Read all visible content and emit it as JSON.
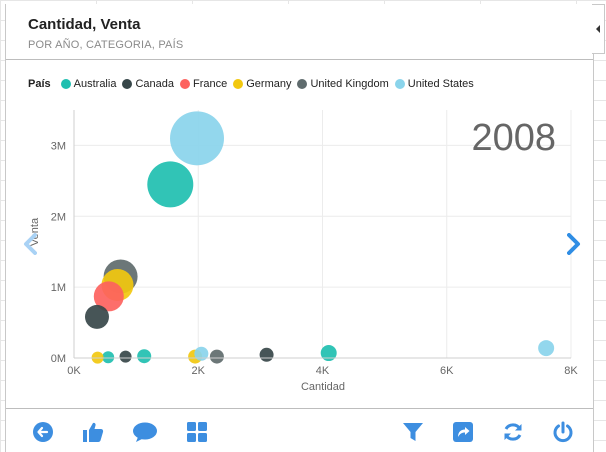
{
  "header": {
    "title": "Cantidad, Venta",
    "subtitle": "POR AÑO, CATEGORIA, PAÍS"
  },
  "legend": {
    "title": "País",
    "items": [
      {
        "label": "Australia",
        "color": "#1fbfb0"
      },
      {
        "label": "Canada",
        "color": "#374649"
      },
      {
        "label": "France",
        "color": "#fd625e"
      },
      {
        "label": "Germany",
        "color": "#f2c80f"
      },
      {
        "label": "United Kingdom",
        "color": "#5f6b6d"
      },
      {
        "label": "United States",
        "color": "#8ad4eb"
      }
    ]
  },
  "play_axis": {
    "year": "2008"
  },
  "chart_data": {
    "type": "scatter",
    "xlabel": "Cantidad",
    "ylabel": "Venta",
    "xlim": [
      0,
      8000
    ],
    "ylim": [
      0,
      3500000
    ],
    "x_ticks": [
      "0K",
      "2K",
      "4K",
      "6K",
      "8K"
    ],
    "y_ticks": [
      "0M",
      "1M",
      "2M",
      "3M"
    ],
    "grid": true,
    "series": [
      {
        "name": "Australia",
        "color": "#1fbfb0",
        "points": [
          {
            "x": 1550,
            "y": 2450000,
            "size": 23
          },
          {
            "x": 550,
            "y": 10000,
            "size": 6
          },
          {
            "x": 1130,
            "y": 25000,
            "size": 7
          },
          {
            "x": 4100,
            "y": 70000,
            "size": 8
          }
        ]
      },
      {
        "name": "Canada",
        "color": "#374649",
        "points": [
          {
            "x": 370,
            "y": 580000,
            "size": 12
          },
          {
            "x": 830,
            "y": 20000,
            "size": 6
          },
          {
            "x": 3100,
            "y": 45000,
            "size": 7
          }
        ]
      },
      {
        "name": "France",
        "color": "#fd625e",
        "points": [
          {
            "x": 560,
            "y": 870000,
            "size": 15
          }
        ]
      },
      {
        "name": "Germany",
        "color": "#f2c80f",
        "points": [
          {
            "x": 700,
            "y": 1030000,
            "size": 16
          },
          {
            "x": 380,
            "y": 5000,
            "size": 6
          },
          {
            "x": 1950,
            "y": 20000,
            "size": 7
          }
        ]
      },
      {
        "name": "United Kingdom",
        "color": "#5f6b6d",
        "points": [
          {
            "x": 750,
            "y": 1150000,
            "size": 17
          },
          {
            "x": 2300,
            "y": 20000,
            "size": 7
          }
        ]
      },
      {
        "name": "United States",
        "color": "#8ad4eb",
        "points": [
          {
            "x": 1980,
            "y": 3100000,
            "size": 27
          },
          {
            "x": 2050,
            "y": 60000,
            "size": 7
          },
          {
            "x": 7600,
            "y": 140000,
            "size": 8
          }
        ]
      }
    ]
  },
  "toolbar": {
    "left": [
      "back-icon",
      "like-icon",
      "comment-icon",
      "grid-icon"
    ],
    "right": [
      "filter-icon",
      "share-icon",
      "refresh-icon",
      "power-icon"
    ],
    "accent": "#3d8ee0"
  }
}
